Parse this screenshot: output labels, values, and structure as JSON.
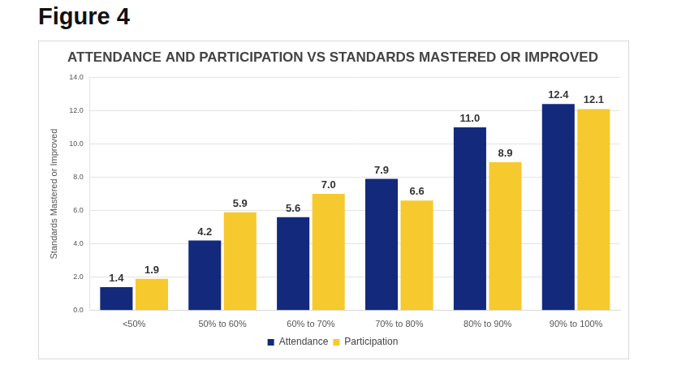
{
  "heading": "Figure 4",
  "chart_data": {
    "type": "bar",
    "title": "ATTENDANCE AND PARTICIPATION VS STANDARDS MASTERED OR IMPROVED",
    "y_label": "Standards Mastered or Improved",
    "categories": [
      "<50%",
      "50% to 60%",
      "60% to 70%",
      "70% to 80%",
      "80% to 90%",
      "90% to 100%"
    ],
    "series": [
      {
        "name": "Attendance",
        "color": "#13297b",
        "values": [
          1.4,
          4.2,
          5.6,
          7.9,
          11.0,
          12.4
        ],
        "value_labels": [
          "1.4",
          "4.2",
          "5.6",
          "7.9",
          "11.0",
          "12.4"
        ]
      },
      {
        "name": "Participation",
        "color": "#f6c92e",
        "values": [
          1.9,
          5.9,
          7.0,
          6.6,
          8.9,
          12.1
        ],
        "value_labels": [
          "1.9",
          "5.9",
          "7.0",
          "6.6",
          "8.9",
          "12.1"
        ]
      }
    ],
    "ylim": [
      0,
      14
    ],
    "yticks": [
      {
        "value": 0,
        "label": "0.0"
      },
      {
        "value": 2,
        "label": "2.0"
      },
      {
        "value": 4,
        "label": "4.0"
      },
      {
        "value": 6,
        "label": "6.0"
      },
      {
        "value": 8,
        "label": "8.0"
      },
      {
        "value": 10,
        "label": "10.0"
      },
      {
        "value": 12,
        "label": "12.0"
      },
      {
        "value": 14,
        "label": "14.0"
      }
    ],
    "grid": true,
    "legend": "bottom",
    "data_labels": true
  }
}
